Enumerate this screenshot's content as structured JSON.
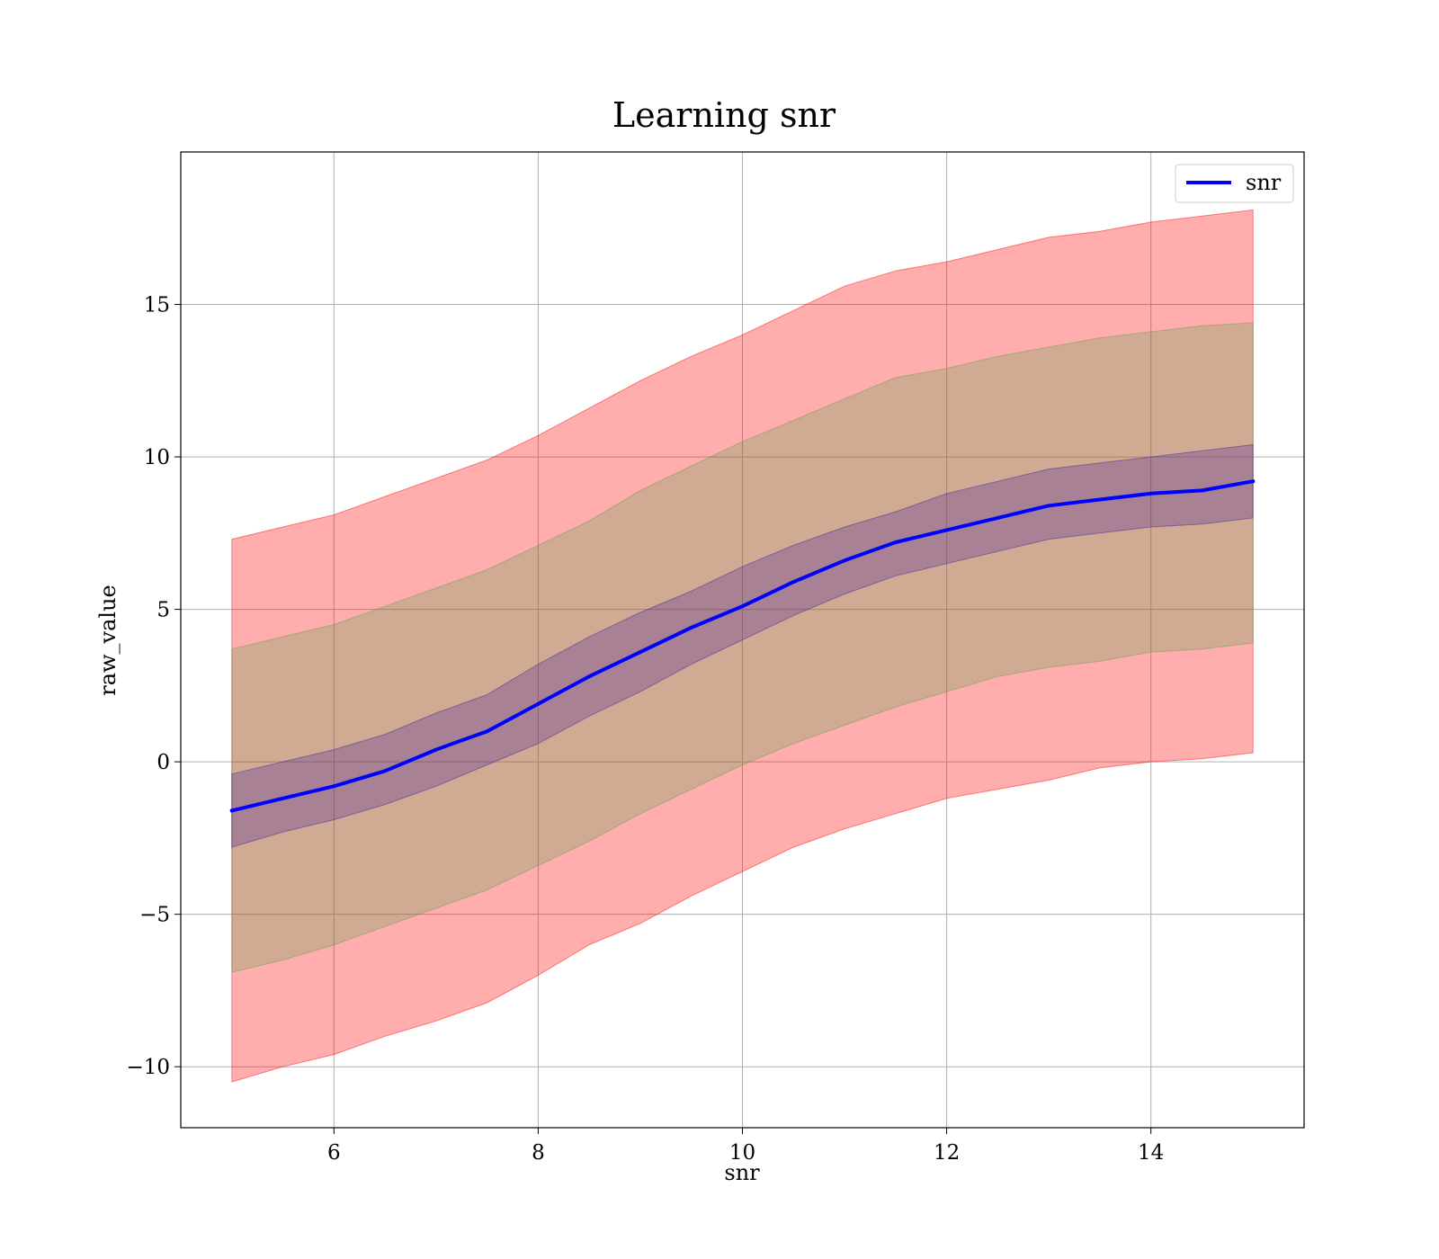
{
  "chart_data": {
    "type": "line",
    "title": "Learning snr",
    "xlabel": "snr",
    "ylabel": "raw_value",
    "xlim": [
      4.5,
      15.5
    ],
    "ylim": [
      -12,
      20
    ],
    "x_ticks": [
      {
        "value": 6,
        "label": "6"
      },
      {
        "value": 8,
        "label": "8"
      },
      {
        "value": 10,
        "label": "10"
      },
      {
        "value": 12,
        "label": "12"
      },
      {
        "value": 14,
        "label": "14"
      }
    ],
    "y_ticks": [
      {
        "value": -10,
        "label": "−10"
      },
      {
        "value": -5,
        "label": "−5"
      },
      {
        "value": 0,
        "label": "0"
      },
      {
        "value": 5,
        "label": "5"
      },
      {
        "value": 10,
        "label": "10"
      },
      {
        "value": 15,
        "label": "15"
      }
    ],
    "grid": true,
    "legend": {
      "position": "top-right",
      "entries": [
        {
          "label": "snr",
          "color": "#0000ff"
        }
      ]
    },
    "x": [
      5.0,
      5.5,
      6.0,
      6.5,
      7.0,
      7.5,
      8.0,
      8.5,
      9.0,
      9.5,
      10.0,
      10.5,
      11.0,
      11.5,
      12.0,
      12.5,
      13.0,
      13.5,
      14.0,
      14.5,
      15.0
    ],
    "series": [
      {
        "name": "snr",
        "color": "#0000ff",
        "values": [
          -1.6,
          -1.2,
          -0.8,
          -0.3,
          0.4,
          1.0,
          1.9,
          2.8,
          3.6,
          4.4,
          5.1,
          5.9,
          6.6,
          7.2,
          7.6,
          8.0,
          8.4,
          8.6,
          8.8,
          8.9,
          9.2
        ],
        "bands": [
          {
            "color": "#ff0000",
            "opacity": 0.32,
            "lower": [
              -10.5,
              -10.0,
              -9.6,
              -9.0,
              -8.5,
              -7.9,
              -7.0,
              -6.0,
              -5.3,
              -4.4,
              -3.6,
              -2.8,
              -2.2,
              -1.7,
              -1.2,
              -0.9,
              -0.6,
              -0.2,
              0.0,
              0.1,
              0.3
            ],
            "upper": [
              7.3,
              7.7,
              8.1,
              8.7,
              9.3,
              9.9,
              10.7,
              11.6,
              12.5,
              13.3,
              14.0,
              14.8,
              15.6,
              16.1,
              16.4,
              16.8,
              17.2,
              17.4,
              17.7,
              17.9,
              18.1
            ]
          },
          {
            "color": "#5aa050",
            "opacity": 0.28,
            "lower": [
              -6.9,
              -6.5,
              -6.0,
              -5.4,
              -4.8,
              -4.2,
              -3.4,
              -2.6,
              -1.7,
              -0.9,
              -0.1,
              0.6,
              1.2,
              1.8,
              2.3,
              2.8,
              3.1,
              3.3,
              3.6,
              3.7,
              3.9
            ],
            "upper": [
              3.7,
              4.1,
              4.5,
              5.1,
              5.7,
              6.3,
              7.1,
              7.9,
              8.9,
              9.7,
              10.5,
              11.2,
              11.9,
              12.6,
              12.9,
              13.3,
              13.6,
              13.9,
              14.1,
              14.3,
              14.4
            ]
          },
          {
            "color": "#3c1e96",
            "opacity": 0.28,
            "lower": [
              -2.8,
              -2.3,
              -1.9,
              -1.4,
              -0.8,
              -0.1,
              0.6,
              1.5,
              2.3,
              3.2,
              4.0,
              4.8,
              5.5,
              6.1,
              6.5,
              6.9,
              7.3,
              7.5,
              7.7,
              7.8,
              8.0
            ],
            "upper": [
              -0.4,
              0.0,
              0.4,
              0.9,
              1.6,
              2.2,
              3.2,
              4.1,
              4.9,
              5.6,
              6.4,
              7.1,
              7.7,
              8.2,
              8.8,
              9.2,
              9.6,
              9.8,
              10.0,
              10.2,
              10.4
            ]
          }
        ]
      }
    ]
  }
}
